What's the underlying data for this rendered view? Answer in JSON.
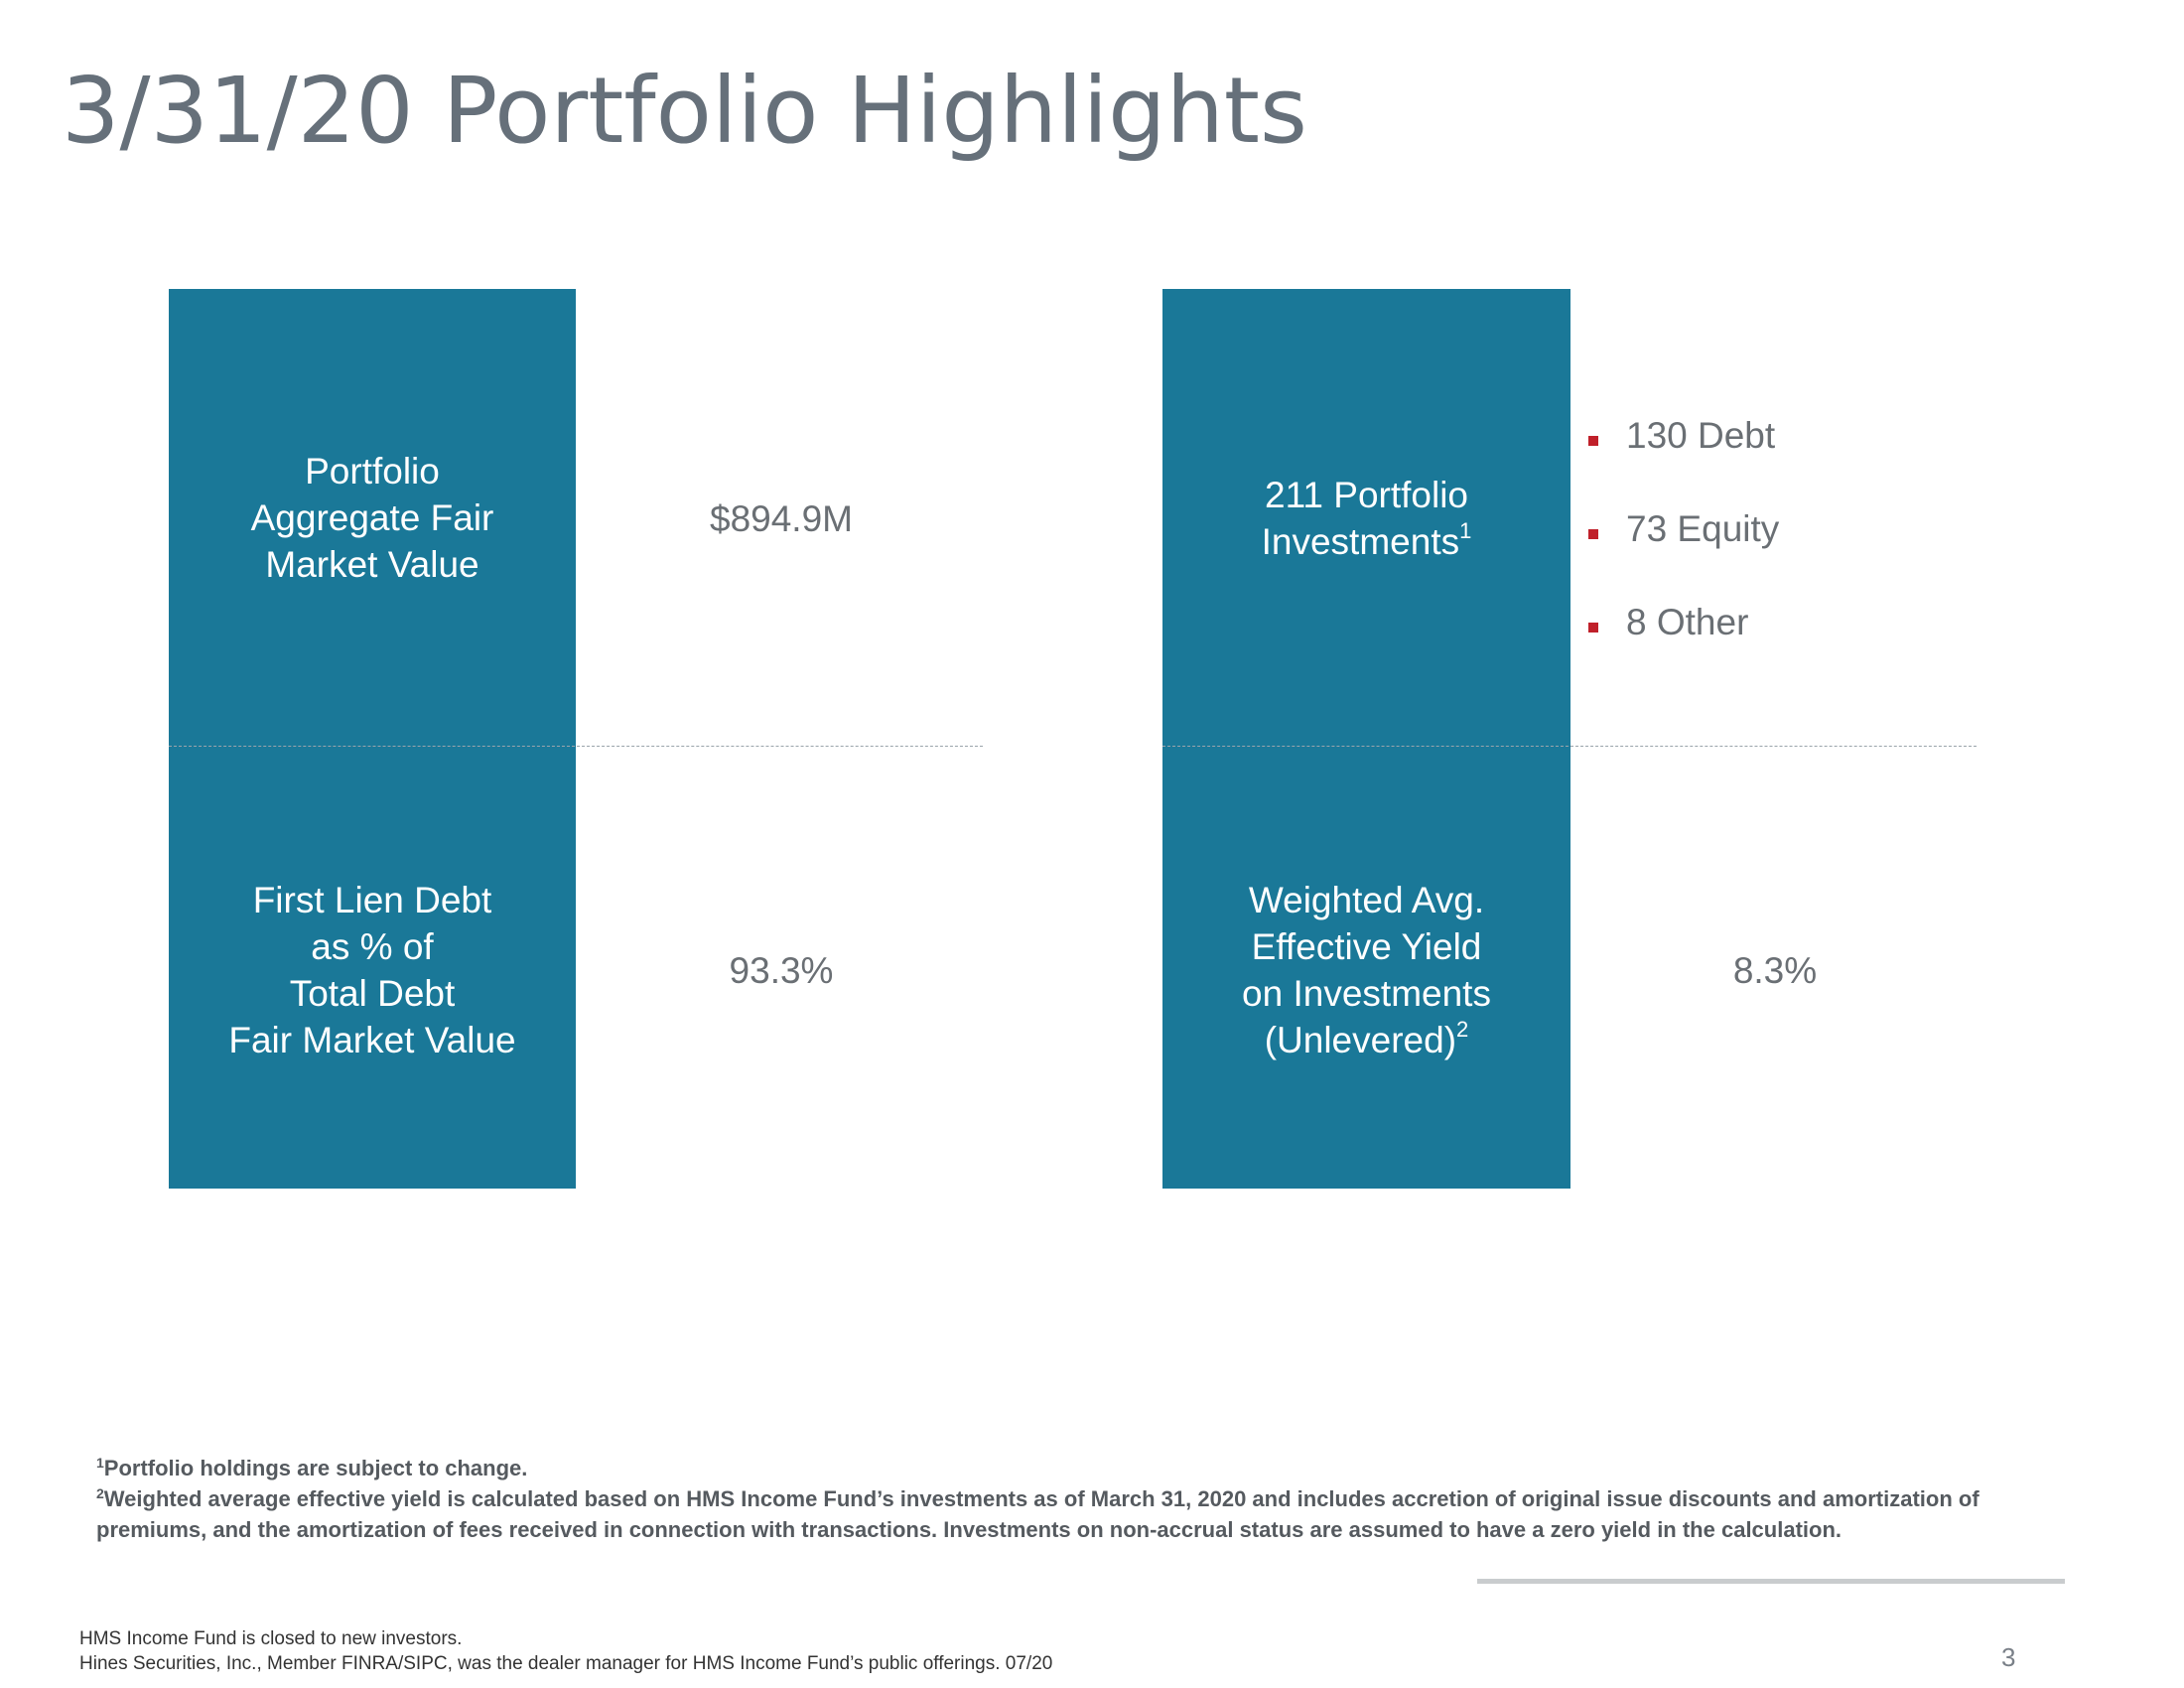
{
  "title": "3/31/20 Portfolio Highlights",
  "left_panel": {
    "top_label": [
      "Portfolio",
      "Aggregate Fair",
      "Market Value"
    ],
    "top_value": "$894.9M",
    "bottom_label": [
      "First Lien Debt",
      "as % of",
      "Total Debt",
      "Fair Market Value"
    ],
    "bottom_value": "93.3%"
  },
  "right_panel": {
    "top_label_line1": "211 Portfolio",
    "top_label_line2": "Investments",
    "top_label_sup": "1",
    "top_bullets": [
      "130 Debt",
      "73 Equity",
      "8 Other"
    ],
    "bottom_label": [
      "Weighted Avg.",
      "Effective Yield",
      "on Investments"
    ],
    "bottom_label_last": "(Unlevered)",
    "bottom_label_sup": "2",
    "bottom_value": "8.3%"
  },
  "footnotes": {
    "note1_marker": "1",
    "note1": "Portfolio holdings are subject to change.",
    "note2_marker": "2",
    "note2": "Weighted average effective yield is calculated based on HMS Income Fund’s investments as of March 31, 2020 and includes accretion  of original issue discounts and amortization of premiums, and the amortization of fees received in connection with transactions. Investments on non-accrual status are assumed to have a zero yield in the calculation."
  },
  "disclaimer": {
    "line1": "HMS Income Fund is closed to new investors.",
    "line2": "Hines Securities, Inc., Member FINRA/SIPC, was the dealer manager for HMS Income Fund’s public offerings. 07/20"
  },
  "page_number": "3",
  "colors": {
    "box": "#1a7898",
    "title": "#66707a",
    "bullet": "#c0202a",
    "value_text": "#6a6f74"
  }
}
